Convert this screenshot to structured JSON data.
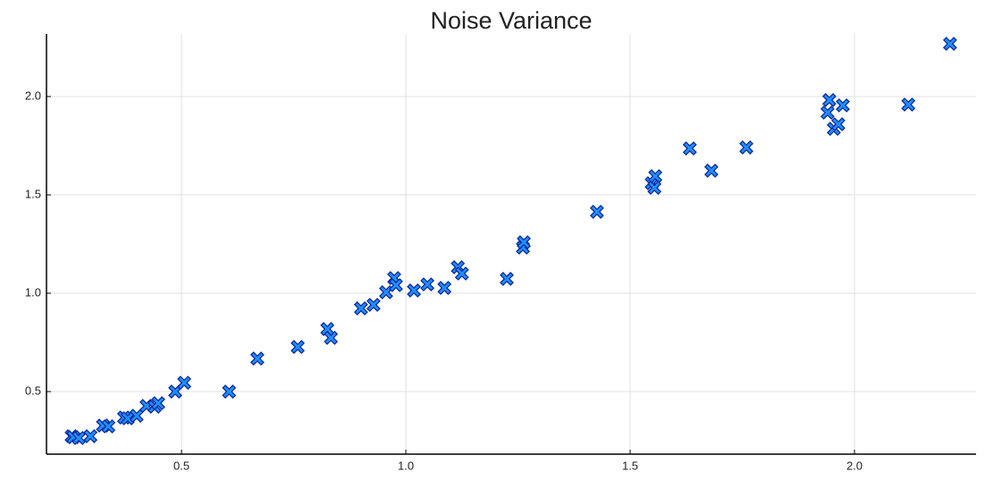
{
  "chart_data": {
    "type": "scatter",
    "title": "Noise Variance",
    "x": [
      0.255,
      0.259,
      0.271,
      0.297,
      0.325,
      0.337,
      0.372,
      0.38,
      0.4,
      0.422,
      0.44,
      0.448,
      0.486,
      0.506,
      0.606,
      0.669,
      0.759,
      0.825,
      0.833,
      0.9,
      0.928,
      0.956,
      0.974,
      0.978,
      1.018,
      1.048,
      1.086,
      1.116,
      1.125,
      1.225,
      1.261,
      1.263,
      1.426,
      1.548,
      1.556,
      1.554,
      1.633,
      1.681,
      1.759,
      1.94,
      1.944,
      1.954,
      1.964,
      1.974,
      2.12,
      2.213
    ],
    "values": [
      0.273,
      0.268,
      0.264,
      0.273,
      0.327,
      0.323,
      0.368,
      0.364,
      0.377,
      0.427,
      0.423,
      0.441,
      0.5,
      0.545,
      0.5,
      0.668,
      0.727,
      0.818,
      0.773,
      0.923,
      0.941,
      1.005,
      1.077,
      1.041,
      1.014,
      1.045,
      1.027,
      1.132,
      1.1,
      1.073,
      1.232,
      1.259,
      1.414,
      1.559,
      1.595,
      1.536,
      1.736,
      1.623,
      1.741,
      1.918,
      1.982,
      1.836,
      1.859,
      1.955,
      1.959,
      2.268
    ],
    "color": "#1e90ff",
    "edge_color": "#0a2a9c",
    "xlim": [
      0.199,
      2.271
    ],
    "ylim": [
      0.182,
      2.318
    ],
    "xticks": [
      0.5,
      {
        "value": 1.0,
        "label": "1.0"
      },
      1.5,
      {
        "value": 2.0,
        "label": "2.0"
      }
    ],
    "yticks": [
      0.5,
      {
        "value": 1.0,
        "label": "1.0"
      },
      1.5,
      {
        "value": 2.0,
        "label": "2.0"
      }
    ],
    "grid": true
  }
}
